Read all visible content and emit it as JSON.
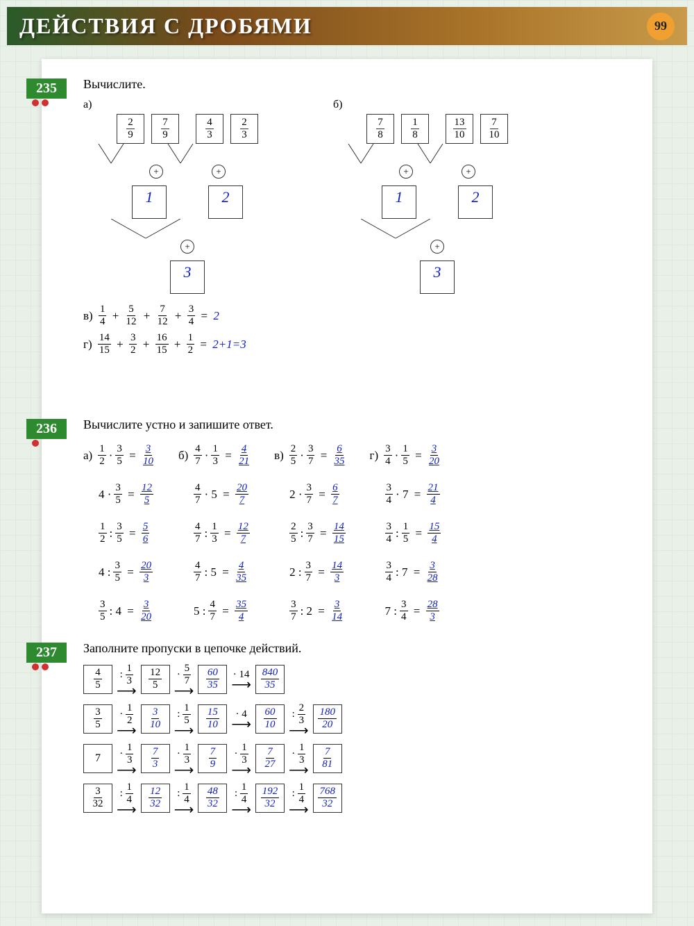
{
  "header": {
    "title": "ДЕЙСТВИЯ С ДРОБЯМИ",
    "page_number": "99"
  },
  "colors": {
    "exnum_bg": "#2e8a2e",
    "dot": "#d03030",
    "handwritten": "#1020c0",
    "pagenum_bg": "#f0a030"
  },
  "ex235": {
    "number": "235",
    "prompt": "Вычислите.",
    "part_a": {
      "label": "а)",
      "pairs": [
        {
          "left": {
            "n": "2",
            "d": "9"
          },
          "right": {
            "n": "7",
            "d": "9"
          },
          "result": "1"
        },
        {
          "left": {
            "n": "4",
            "d": "3"
          },
          "right": {
            "n": "2",
            "d": "3"
          },
          "result": "2"
        }
      ],
      "final": "3"
    },
    "part_b": {
      "label": "б)",
      "pairs": [
        {
          "left": {
            "n": "7",
            "d": "8"
          },
          "right": {
            "n": "1",
            "d": "8"
          },
          "result": "1"
        },
        {
          "left": {
            "n": "13",
            "d": "10"
          },
          "right": {
            "n": "7",
            "d": "10"
          },
          "result": "2"
        }
      ],
      "final": "3"
    },
    "part_v": {
      "label": "в)",
      "terms": [
        {
          "n": "1",
          "d": "4"
        },
        {
          "n": "5",
          "d": "12"
        },
        {
          "n": "7",
          "d": "12"
        },
        {
          "n": "3",
          "d": "4"
        }
      ],
      "answer": "2"
    },
    "part_g": {
      "label": "г)",
      "terms": [
        {
          "n": "14",
          "d": "15"
        },
        {
          "n": "3",
          "d": "2"
        },
        {
          "n": "16",
          "d": "15"
        },
        {
          "n": "1",
          "d": "2"
        }
      ],
      "answer": "2+1=3"
    }
  },
  "ex236": {
    "number": "236",
    "prompt": "Вычислите устно и запишите ответ.",
    "cols": [
      {
        "label": "а)",
        "rows": [
          {
            "expr": [
              {
                "n": "1",
                "d": "2"
              },
              " · ",
              {
                "n": "3",
                "d": "5"
              }
            ],
            "ans": {
              "n": "3",
              "d": "10"
            }
          },
          {
            "expr": [
              "4 · ",
              {
                "n": "3",
                "d": "5"
              }
            ],
            "ans": {
              "n": "12",
              "d": "5"
            }
          },
          {
            "expr": [
              {
                "n": "1",
                "d": "2"
              },
              " : ",
              {
                "n": "3",
                "d": "5"
              }
            ],
            "ans": {
              "n": "5",
              "d": "6"
            }
          },
          {
            "expr": [
              "4 : ",
              {
                "n": "3",
                "d": "5"
              }
            ],
            "ans": {
              "n": "20",
              "d": "3"
            }
          },
          {
            "expr": [
              {
                "n": "3",
                "d": "5"
              },
              " : 4"
            ],
            "ans": {
              "n": "3",
              "d": "20"
            }
          }
        ]
      },
      {
        "label": "б)",
        "rows": [
          {
            "expr": [
              {
                "n": "4",
                "d": "7"
              },
              " · ",
              {
                "n": "1",
                "d": "3"
              }
            ],
            "ans": {
              "n": "4",
              "d": "21"
            }
          },
          {
            "expr": [
              {
                "n": "4",
                "d": "7"
              },
              " · 5"
            ],
            "ans": {
              "n": "20",
              "d": "7"
            }
          },
          {
            "expr": [
              {
                "n": "4",
                "d": "7"
              },
              " : ",
              {
                "n": "1",
                "d": "3"
              }
            ],
            "ans": {
              "n": "12",
              "d": "7"
            }
          },
          {
            "expr": [
              {
                "n": "4",
                "d": "7"
              },
              " : 5"
            ],
            "ans": {
              "n": "4",
              "d": "35"
            }
          },
          {
            "expr": [
              "5 : ",
              {
                "n": "4",
                "d": "7"
              }
            ],
            "ans": {
              "n": "35",
              "d": "4"
            }
          }
        ]
      },
      {
        "label": "в)",
        "rows": [
          {
            "expr": [
              {
                "n": "2",
                "d": "5"
              },
              " · ",
              {
                "n": "3",
                "d": "7"
              }
            ],
            "ans": {
              "n": "6",
              "d": "35"
            }
          },
          {
            "expr": [
              "2 · ",
              {
                "n": "3",
                "d": "7"
              }
            ],
            "ans": {
              "n": "6",
              "d": "7"
            }
          },
          {
            "expr": [
              {
                "n": "2",
                "d": "5"
              },
              " : ",
              {
                "n": "3",
                "d": "7"
              }
            ],
            "ans": {
              "n": "14",
              "d": "15"
            }
          },
          {
            "expr": [
              "2 : ",
              {
                "n": "3",
                "d": "7"
              }
            ],
            "ans": {
              "n": "14",
              "d": "3"
            }
          },
          {
            "expr": [
              {
                "n": "3",
                "d": "7"
              },
              " : 2"
            ],
            "ans": {
              "n": "3",
              "d": "14"
            }
          }
        ]
      },
      {
        "label": "г)",
        "rows": [
          {
            "expr": [
              {
                "n": "3",
                "d": "4"
              },
              " · ",
              {
                "n": "1",
                "d": "5"
              }
            ],
            "ans": {
              "n": "3",
              "d": "20"
            }
          },
          {
            "expr": [
              {
                "n": "3",
                "d": "4"
              },
              " · 7"
            ],
            "ans": {
              "n": "21",
              "d": "4"
            }
          },
          {
            "expr": [
              {
                "n": "3",
                "d": "4"
              },
              " : ",
              {
                "n": "1",
                "d": "5"
              }
            ],
            "ans": {
              "n": "15",
              "d": "4"
            }
          },
          {
            "expr": [
              {
                "n": "3",
                "d": "4"
              },
              " : 7"
            ],
            "ans": {
              "n": "3",
              "d": "28"
            }
          },
          {
            "expr": [
              "7 : ",
              {
                "n": "3",
                "d": "4"
              }
            ],
            "ans": {
              "n": "28",
              "d": "3"
            }
          }
        ]
      }
    ]
  },
  "ex237": {
    "number": "237",
    "prompt": "Заполните пропуски в цепочке действий.",
    "chains": [
      {
        "start": {
          "n": "4",
          "d": "5"
        },
        "steps": [
          {
            "op": ":",
            "val": {
              "n": "1",
              "d": "3"
            },
            "res": {
              "n": "12",
              "d": "5"
            }
          },
          {
            "op": "·",
            "val": {
              "n": "5",
              "d": "7"
            },
            "res": {
              "n": "60",
              "d": "35"
            },
            "hw": true
          },
          {
            "op": "·",
            "val": "14",
            "res": {
              "n": "840",
              "d": "35"
            },
            "hw": true
          }
        ]
      },
      {
        "start": {
          "n": "3",
          "d": "5"
        },
        "steps": [
          {
            "op": "·",
            "val": {
              "n": "1",
              "d": "2"
            },
            "res": {
              "n": "3",
              "d": "10"
            },
            "hw": true
          },
          {
            "op": ":",
            "val": {
              "n": "1",
              "d": "5"
            },
            "res": {
              "n": "15",
              "d": "10"
            },
            "hw": true
          },
          {
            "op": "·",
            "val": "4",
            "res": {
              "n": "60",
              "d": "10"
            },
            "hw": true
          },
          {
            "op": ":",
            "val": {
              "n": "2",
              "d": "3"
            },
            "res": {
              "n": "180",
              "d": "20"
            },
            "hw": true
          }
        ]
      },
      {
        "start": "7",
        "steps": [
          {
            "op": "·",
            "val": {
              "n": "1",
              "d": "3"
            },
            "res": {
              "n": "7",
              "d": "3"
            },
            "hw": true
          },
          {
            "op": "·",
            "val": {
              "n": "1",
              "d": "3"
            },
            "res": {
              "n": "7",
              "d": "9"
            },
            "hw": true
          },
          {
            "op": "·",
            "val": {
              "n": "1",
              "d": "3"
            },
            "res": {
              "n": "7",
              "d": "27"
            },
            "hw": true
          },
          {
            "op": "·",
            "val": {
              "n": "1",
              "d": "3"
            },
            "res": {
              "n": "7",
              "d": "81"
            },
            "hw": true
          }
        ]
      },
      {
        "start": {
          "n": "3",
          "d": "32"
        },
        "steps": [
          {
            "op": ":",
            "val": {
              "n": "1",
              "d": "4"
            },
            "res": {
              "n": "12",
              "d": "32"
            },
            "hw": true
          },
          {
            "op": ":",
            "val": {
              "n": "1",
              "d": "4"
            },
            "res": {
              "n": "48",
              "d": "32"
            },
            "hw": true
          },
          {
            "op": ":",
            "val": {
              "n": "1",
              "d": "4"
            },
            "res": {
              "n": "192",
              "d": "32"
            },
            "hw": true
          },
          {
            "op": ":",
            "val": {
              "n": "1",
              "d": "4"
            },
            "res": {
              "n": "768",
              "d": "32"
            },
            "hw": true
          }
        ]
      }
    ]
  }
}
